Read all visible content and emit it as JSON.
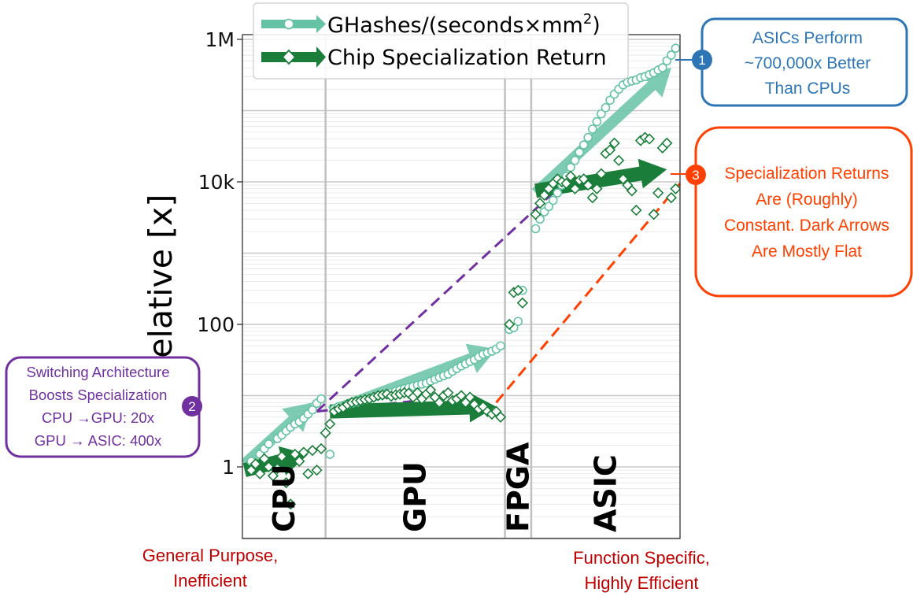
{
  "chart_data": {
    "type": "scatter",
    "ylabel": "Relative [x]",
    "yscale": "log",
    "ylim": [
      0.1,
      1000000
    ],
    "yticks": [
      {
        "v": 1,
        "label": "1"
      },
      {
        "v": 100,
        "label": "100"
      },
      {
        "v": 10000,
        "label": "10k"
      },
      {
        "v": 1000000,
        "label": "1M"
      }
    ],
    "x_index_range": [
      0,
      100
    ],
    "regions": [
      {
        "label": "CPU",
        "start": 0,
        "end": 19
      },
      {
        "label": "GPU",
        "start": 19,
        "end": 60
      },
      {
        "label": "FPGA",
        "start": 60,
        "end": 66
      },
      {
        "label": "ASIC",
        "start": 66,
        "end": 100
      }
    ],
    "legend": {
      "position": "top-center"
    },
    "series": [
      {
        "name_parts": [
          "GHashes/(seconds×mm",
          "2",
          ")"
        ],
        "color": "#66c2a4",
        "marker": "circle",
        "x": [
          2,
          4,
          5,
          6,
          8,
          9,
          10,
          11,
          12,
          13,
          14,
          15,
          16,
          17,
          18,
          20,
          21,
          22,
          23,
          24,
          25,
          26,
          27,
          28,
          29,
          30,
          31,
          32,
          33,
          34,
          35,
          36,
          37,
          38,
          39,
          40,
          41,
          42,
          43,
          44,
          45,
          46,
          47,
          48,
          49,
          50,
          51,
          52,
          53,
          54,
          55,
          56,
          57,
          58,
          59,
          61,
          62,
          63,
          64,
          67,
          68,
          69,
          70,
          71,
          72,
          73,
          74,
          75,
          76,
          77,
          78,
          79,
          80,
          81,
          82,
          83,
          84,
          85,
          86,
          87,
          88,
          89,
          90,
          91,
          92,
          93,
          94,
          95,
          96,
          97,
          98,
          99
        ],
        "y": [
          1.2,
          1.5,
          1.8,
          2.1,
          2.5,
          2.8,
          3.2,
          3.6,
          4,
          4.3,
          4.8,
          5.5,
          6.3,
          7.8,
          9,
          1.5,
          6.5,
          7,
          7.2,
          7.5,
          7.8,
          8,
          8.5,
          8.8,
          9,
          9.5,
          10,
          10.3,
          10.7,
          11,
          11.5,
          12,
          12.5,
          13,
          13.5,
          14,
          14.5,
          15,
          16,
          17,
          18,
          19,
          20,
          22,
          24,
          26,
          28,
          30,
          32,
          35,
          38,
          40,
          42,
          45,
          50,
          85,
          90,
          110,
          300,
          2200,
          3000,
          3800,
          4500,
          5500,
          7000,
          9000,
          12000,
          16000,
          20000,
          26000,
          33000,
          42000,
          55000,
          70000,
          90000,
          110000,
          140000,
          170000,
          200000,
          230000,
          250000,
          260000,
          270000,
          290000,
          300000,
          320000,
          340000,
          370000,
          400000,
          500000,
          600000,
          750000
        ]
      },
      {
        "name": "Chip Specialization Return",
        "color": "#1a7d3a",
        "marker": "diamond",
        "x": [
          2,
          3,
          4,
          5,
          6,
          7,
          8,
          9,
          10,
          11,
          12,
          13,
          14,
          15,
          16,
          17,
          18,
          19,
          20,
          21,
          22,
          23,
          24,
          25,
          26,
          27,
          28,
          29,
          30,
          31,
          32,
          33,
          34,
          35,
          36,
          37,
          38,
          39,
          40,
          41,
          42,
          43,
          44,
          45,
          46,
          47,
          48,
          49,
          50,
          51,
          52,
          53,
          54,
          55,
          56,
          57,
          58,
          59,
          61,
          62,
          63,
          64,
          67,
          68,
          69,
          70,
          71,
          72,
          73,
          74,
          75,
          76,
          77,
          78,
          79,
          80,
          81,
          82,
          83,
          84,
          85,
          86,
          87,
          88,
          89,
          90,
          91,
          92,
          93,
          94,
          95,
          96,
          97,
          98,
          99
        ],
        "y": [
          0.9,
          1.1,
          0.8,
          1.3,
          1.0,
          0.75,
          0.95,
          1.4,
          0.6,
          0.3,
          1.5,
          1.2,
          1.6,
          0.8,
          1.7,
          0.9,
          1.8,
          3,
          4,
          6,
          6.5,
          6.8,
          7.5,
          8,
          8.2,
          8.5,
          8.8,
          9,
          9.5,
          10,
          10.2,
          10.5,
          9.8,
          10.2,
          10.5,
          11,
          10.8,
          9.5,
          11,
          9,
          10.5,
          12,
          9.5,
          8,
          10,
          11,
          8.5,
          9,
          10,
          8,
          9.5,
          7.5,
          6.5,
          7,
          6,
          5.5,
          6,
          5,
          100,
          280,
          300,
          200,
          3500,
          5000,
          6500,
          8000,
          9500,
          11000,
          10000,
          9500,
          12000,
          8000,
          10500,
          11000,
          9000,
          6000,
          8000,
          13000,
          25000,
          28000,
          35000,
          20000,
          11000,
          9000,
          7500,
          4000,
          38000,
          42000,
          40000,
          3500,
          7000,
          30000,
          35000,
          6000,
          8000
        ]
      }
    ],
    "trend_arrows": [
      {
        "series": 0,
        "x1": 0.5,
        "y1": 1.1,
        "x2": 16,
        "y2": 8
      },
      {
        "series": 0,
        "x1": 20,
        "y1": 6,
        "x2": 58,
        "y2": 45
      },
      {
        "series": 0,
        "x1": 67,
        "y1": 7000,
        "x2": 98,
        "y2": 400000
      },
      {
        "series": 1,
        "x1": 0.5,
        "y1": 0.9,
        "x2": 15,
        "y2": 1.5
      },
      {
        "series": 1,
        "x1": 20,
        "y1": 6,
        "x2": 58,
        "y2": 7
      },
      {
        "series": 1,
        "x1": 67,
        "y1": 7500,
        "x2": 97,
        "y2": 15000
      }
    ],
    "dashed_lines": [
      {
        "color": "#7030a0",
        "x1": 17,
        "y1": 6,
        "x2": 40,
        "y2": 8.5
      },
      {
        "color": "#7030a0",
        "x1": 17,
        "y1": 6,
        "x2": 72,
        "y2": 8000
      },
      {
        "color": "#ff4000",
        "x1": 58,
        "y1": 8,
        "x2": 100,
        "y2": 9500
      }
    ],
    "callouts": [
      {
        "number": "1",
        "color": "#2e75b6",
        "lines": [
          "ASICs Perform",
          "~700,000x Better",
          "Than CPUs"
        ]
      },
      {
        "number": "2",
        "color": "#7030a0",
        "lines": [
          "Switching Architecture",
          "Boosts Specialization",
          "CPU →GPU: 20x",
          "GPU → ASIC: 400x"
        ]
      },
      {
        "number": "3",
        "color": "#ff4000",
        "lines": [
          "Specialization Returns",
          "Are (Roughly)",
          "Constant. Dark Arrows",
          "Are Mostly Flat"
        ]
      }
    ],
    "footer": {
      "left": [
        "General Purpose,",
        "Inefficient"
      ],
      "right": [
        "Function Specific,",
        "Highly Efficient"
      ],
      "color": "#c00000"
    }
  }
}
